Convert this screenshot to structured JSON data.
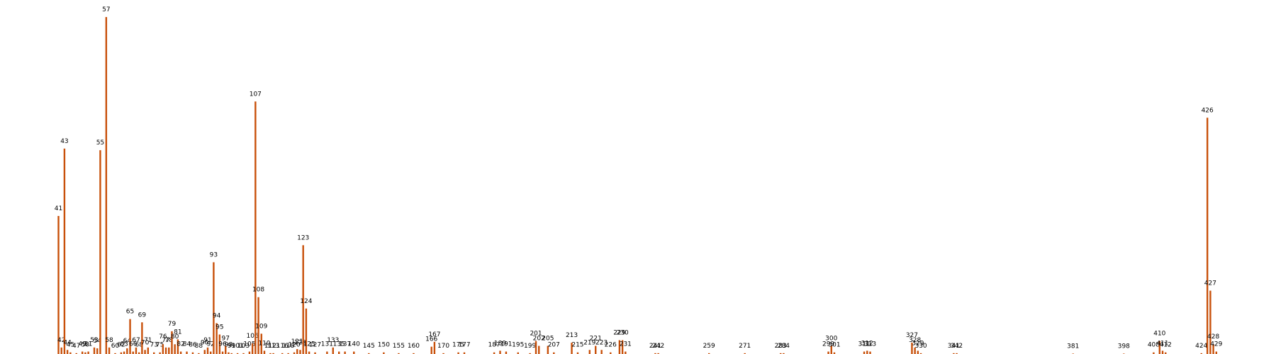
{
  "chart_data": {
    "type": "bar",
    "x": [
      41,
      42,
      43,
      44,
      45,
      47,
      49,
      50,
      51,
      53,
      54,
      55,
      57,
      58,
      60,
      62,
      63,
      64,
      65,
      66,
      67,
      68,
      69,
      70,
      71,
      73,
      75,
      76,
      77,
      78,
      79,
      80,
      81,
      82,
      84,
      86,
      88,
      90,
      91,
      92,
      93,
      94,
      95,
      96,
      97,
      98,
      99,
      101,
      103,
      105,
      106,
      107,
      108,
      109,
      110,
      112,
      113,
      116,
      118,
      120,
      121,
      122,
      123,
      124,
      125,
      127,
      131,
      133,
      135,
      137,
      140,
      145,
      150,
      155,
      160,
      166,
      167,
      170,
      175,
      177,
      187,
      189,
      191,
      195,
      199,
      201,
      202,
      205,
      207,
      213,
      215,
      219,
      221,
      223,
      226,
      229,
      230,
      231,
      241,
      242,
      259,
      271,
      283,
      284,
      299,
      300,
      301,
      311,
      312,
      313,
      327,
      328,
      329,
      330,
      341,
      342,
      381,
      398,
      408,
      410,
      411,
      412,
      424,
      426,
      427,
      428,
      429
    ],
    "values": [
      170,
      8,
      253,
      5,
      2,
      1,
      3,
      2,
      3,
      8,
      7,
      251,
      415,
      8,
      1,
      2,
      3,
      7,
      43,
      3,
      8,
      2,
      39,
      5,
      8,
      2,
      2,
      12,
      8,
      8,
      28,
      12,
      18,
      3,
      3,
      2,
      1,
      5,
      8,
      3,
      113,
      38,
      24,
      3,
      10,
      2,
      1,
      1,
      1,
      3,
      13,
      311,
      70,
      25,
      4,
      1,
      1,
      1,
      1,
      2,
      6,
      5,
      134,
      56,
      3,
      2,
      3,
      8,
      3,
      3,
      3,
      1,
      2,
      1,
      1,
      9,
      15,
      1,
      2,
      2,
      2,
      4,
      3,
      2,
      1,
      16,
      10,
      10,
      2,
      14,
      2,
      5,
      10,
      5,
      2,
      17,
      17,
      3,
      1,
      1,
      1,
      1,
      1,
      1,
      3,
      10,
      2,
      3,
      4,
      3,
      14,
      8,
      4,
      1,
      1,
      1,
      0.5,
      0.5,
      2,
      16,
      4,
      2,
      1,
      291,
      78,
      12,
      3
    ],
    "color": "#c8500a",
    "xlim": [
      21.4,
      449
    ],
    "ylim": [
      0,
      436
    ]
  }
}
